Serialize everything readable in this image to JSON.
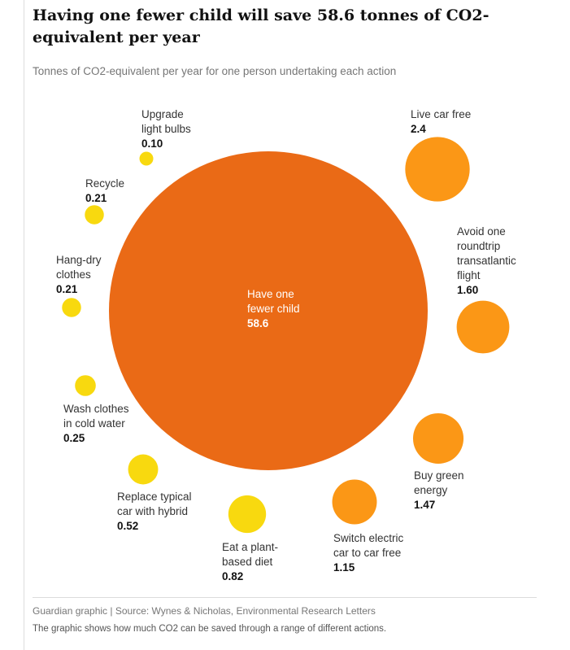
{
  "title": "Having one fewer child will save 58.6 tonnes of CO2-equivalent per year",
  "subtitle": "Tonnes of CO2-equivalent per year for one person undertaking each action",
  "source": "Guardian graphic | Source: Wynes & Nicholas, Environmental Research Letters",
  "note": "The graphic shows how much CO2 can be saved through a range of different actions.",
  "colors": {
    "high": "#ea6a16",
    "medium": "#fb9716",
    "low": "#f8d90f",
    "center_text": "#ffffff",
    "label_text": "#333333",
    "value_text": "#121212"
  },
  "chart_data": {
    "type": "bubble",
    "title": "Having one fewer child will save 58.6 tonnes of CO2-equivalent per year",
    "subtitle": "Tonnes of CO2-equivalent per year for one person undertaking each action",
    "unit": "Tonnes of CO2-equivalent per year",
    "items": [
      {
        "label": "Have one fewer child",
        "label_lines": [
          "Have one",
          "fewer child"
        ],
        "value": 58.6,
        "value_text": "58.6",
        "category": "high"
      },
      {
        "label": "Live car free",
        "label_lines": [
          "Live car free"
        ],
        "value": 2.4,
        "value_text": "2.4",
        "category": "medium"
      },
      {
        "label": "Avoid one roundtrip transatlantic flight",
        "label_lines": [
          "Avoid one",
          "roundtrip",
          "transatlantic",
          "flight"
        ],
        "value": 1.6,
        "value_text": "1.60",
        "category": "medium"
      },
      {
        "label": "Buy green energy",
        "label_lines": [
          "Buy green",
          "energy"
        ],
        "value": 1.47,
        "value_text": "1.47",
        "category": "medium"
      },
      {
        "label": "Switch electric car to car free",
        "label_lines": [
          "Switch electric",
          "car to car free"
        ],
        "value": 1.15,
        "value_text": "1.15",
        "category": "medium"
      },
      {
        "label": "Eat a plant-based diet",
        "label_lines": [
          "Eat a plant-",
          "based diet"
        ],
        "value": 0.82,
        "value_text": "0.82",
        "category": "low"
      },
      {
        "label": "Replace typical car with hybrid",
        "label_lines": [
          "Replace typical",
          "car with hybrid"
        ],
        "value": 0.52,
        "value_text": "0.52",
        "category": "low"
      },
      {
        "label": "Wash clothes in cold water",
        "label_lines": [
          "Wash clothes",
          "in cold water"
        ],
        "value": 0.25,
        "value_text": "0.25",
        "category": "low"
      },
      {
        "label": "Hang-dry clothes",
        "label_lines": [
          "Hang-dry",
          "clothes"
        ],
        "value": 0.21,
        "value_text": "0.21",
        "category": "low"
      },
      {
        "label": "Recycle",
        "label_lines": [
          "Recycle"
        ],
        "value": 0.21,
        "value_text": "0.21",
        "category": "low"
      },
      {
        "label": "Upgrade light bulbs",
        "label_lines": [
          "Upgrade",
          "light bulbs"
        ],
        "value": 0.1,
        "value_text": "0.10",
        "category": "low"
      }
    ]
  }
}
